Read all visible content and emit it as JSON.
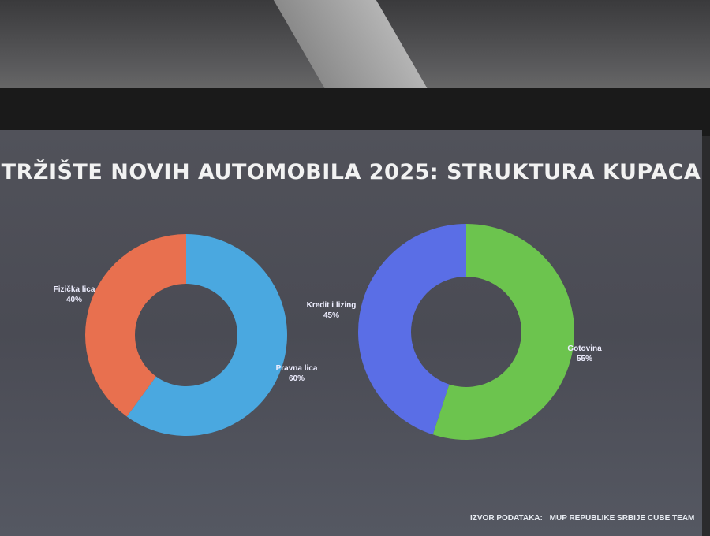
{
  "title": "TRŽIŠTE NOVIH AUTOMOBILA 2025: STRUKTURA KUPACA",
  "source": {
    "label": "IZVOR PODATAKA:",
    "value": "MUP REPUBLIKE SRBIJE CUBE TEAM"
  },
  "chart_data": [
    {
      "type": "pie",
      "donut": true,
      "slices": [
        {
          "label": "Pravna lica",
          "value": 60,
          "value_label": "60%",
          "color": "#4aa8e0"
        },
        {
          "label": "Fizička lica",
          "value": 40,
          "value_label": "40%",
          "color": "#e8704f"
        }
      ]
    },
    {
      "type": "pie",
      "donut": true,
      "slices": [
        {
          "label": "Gotovina",
          "value": 55,
          "value_label": "55%",
          "color": "#6cc44e"
        },
        {
          "label": "Kredit i lizing",
          "value": 45,
          "value_label": "45%",
          "color": "#5a6ee6"
        }
      ]
    }
  ]
}
